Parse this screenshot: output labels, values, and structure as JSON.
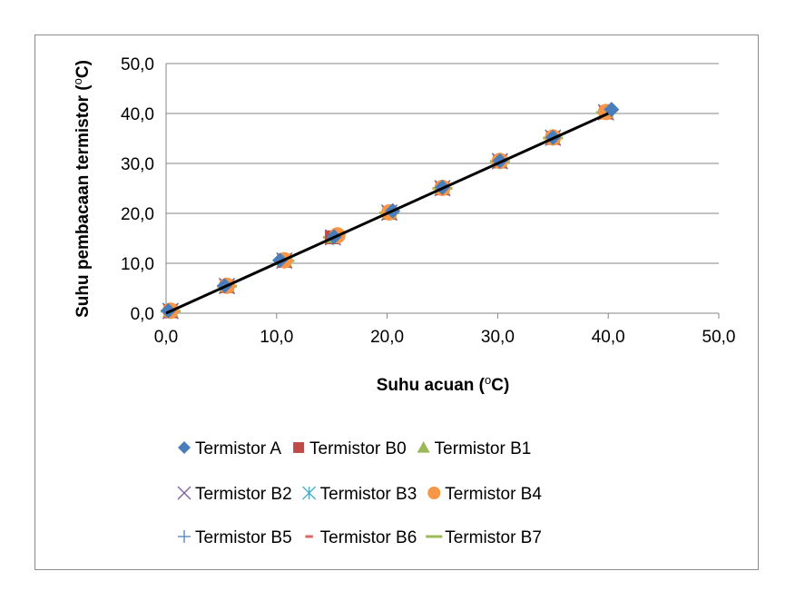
{
  "chart_data": {
    "type": "scatter",
    "xlabel_prefix": "Suhu acuan (",
    "xlabel_sup": "o",
    "xlabel_suffix": "C)",
    "ylabel_prefix": "Suhu pembacaan termistor (",
    "ylabel_sup": "o",
    "ylabel_suffix": "C)",
    "xlim": [
      0,
      50
    ],
    "ylim": [
      0,
      50
    ],
    "xticks": [
      "0,0",
      "10,0",
      "20,0",
      "30,0",
      "40,0",
      "50,0"
    ],
    "yticks": [
      "0,0",
      "10,0",
      "20,0",
      "30,0",
      "40,0",
      "50,0"
    ],
    "grid": "horizontal",
    "legend_position": "bottom",
    "series": [
      {
        "name": "Termistor A",
        "marker": "diamond",
        "color": "#4a7ebb",
        "x": [
          0.2,
          5.3,
          10.3,
          15.2,
          20.5,
          25.0,
          30.2,
          35.0,
          40.3
        ],
        "y": [
          0.5,
          5.5,
          10.6,
          15.3,
          20.5,
          25.2,
          30.5,
          35.2,
          40.8
        ]
      },
      {
        "name": "Termistor B0",
        "marker": "square",
        "color": "#be4b48",
        "x": [
          0.4,
          5.5,
          10.7,
          15.0,
          20.2,
          25.0,
          30.2,
          35.0,
          39.8
        ],
        "y": [
          0.4,
          5.4,
          10.5,
          15.2,
          20.1,
          25.0,
          30.4,
          35.1,
          40.2
        ]
      },
      {
        "name": "Termistor B1",
        "marker": "triangle",
        "color": "#98b954",
        "x": [
          0.4,
          5.5,
          10.7,
          15.1,
          20.2,
          25.0,
          30.2,
          35.0,
          39.8
        ],
        "y": [
          0.5,
          5.5,
          10.6,
          15.3,
          20.2,
          25.1,
          30.5,
          35.2,
          40.3
        ]
      },
      {
        "name": "Termistor B2",
        "marker": "x",
        "color": "#7d60a0",
        "x": [
          0.4,
          5.5,
          10.7,
          15.1,
          20.2,
          25.0,
          30.2,
          35.0,
          39.8
        ],
        "y": [
          0.4,
          5.4,
          10.5,
          15.2,
          20.1,
          25.0,
          30.4,
          35.1,
          40.2
        ]
      },
      {
        "name": "Termistor B3",
        "marker": "asterisk",
        "color": "#46aac5",
        "x": [
          0.4,
          5.5,
          10.7,
          15.1,
          20.2,
          25.0,
          30.2,
          35.0,
          39.8
        ],
        "y": [
          0.5,
          5.5,
          10.6,
          15.2,
          20.2,
          25.1,
          30.5,
          35.2,
          40.3
        ]
      },
      {
        "name": "Termistor B4",
        "marker": "circle",
        "color": "#f79646",
        "x": [
          0.4,
          5.5,
          10.7,
          15.5,
          20.2,
          25.0,
          30.2,
          35.0,
          39.8
        ],
        "y": [
          0.5,
          5.5,
          10.6,
          15.6,
          20.2,
          25.1,
          30.5,
          35.2,
          40.3
        ]
      },
      {
        "name": "Termistor B5",
        "marker": "plus",
        "color": "#4f81bd",
        "x": [
          0.4,
          5.5,
          10.7,
          15.1,
          20.2,
          25.0,
          30.2,
          35.0,
          39.8
        ],
        "y": [
          0.4,
          5.4,
          10.5,
          15.2,
          20.1,
          25.0,
          30.4,
          35.1,
          40.2
        ]
      },
      {
        "name": "Termistor B6",
        "marker": "dash",
        "color": "#e06666",
        "x": [
          0.4,
          5.5,
          10.7,
          15.1,
          20.2,
          25.0,
          30.2,
          35.0,
          39.8
        ],
        "y": [
          0.4,
          5.4,
          10.5,
          15.2,
          20.1,
          25.0,
          30.4,
          35.1,
          40.2
        ]
      },
      {
        "name": "Termistor B7",
        "marker": "line",
        "color": "#9bbb59",
        "x": [
          0.4,
          5.5,
          10.7,
          15.1,
          20.2,
          25.0,
          30.2,
          35.0,
          39.8
        ],
        "y": [
          0.4,
          5.4,
          10.5,
          15.2,
          20.1,
          25.0,
          30.4,
          35.1,
          40.2
        ]
      }
    ],
    "reference_line": {
      "color": "#000000",
      "x": [
        0,
        40
      ],
      "y": [
        0,
        40
      ]
    }
  }
}
